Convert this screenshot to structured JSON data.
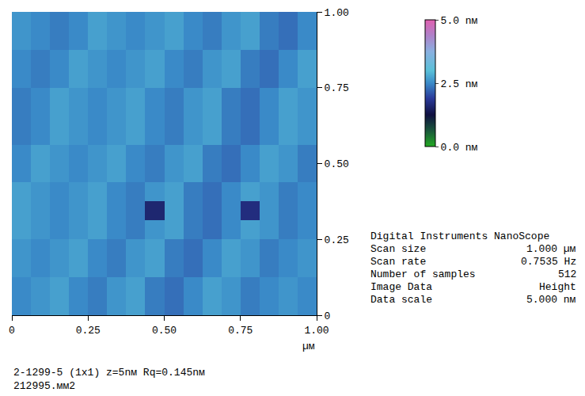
{
  "chart_data": {
    "type": "heatmap",
    "xlim": [
      0,
      1
    ],
    "ylim": [
      0,
      1
    ],
    "xticks": [
      0,
      0.25,
      {
        "value": 0.5,
        "label": "0.50"
      },
      0.75,
      {
        "value": 1,
        "label": "1.00"
      }
    ],
    "yticks": [
      0,
      0.25,
      {
        "value": 0.5,
        "label": "0.50"
      },
      0.75,
      {
        "value": 1,
        "label": "1.00"
      }
    ],
    "x_label": "µм",
    "z": [
      [
        2.5,
        2.6,
        2.7,
        2.5,
        2.4,
        2.6,
        2.7,
        2.4,
        2.3,
        2.5,
        2.7,
        2.6,
        2.4,
        2.5,
        2.6,
        2.5
      ],
      [
        2.5,
        2.6,
        2.7,
        2.5,
        2.4,
        2.6,
        2.7,
        2.4,
        2.3,
        2.5,
        2.7,
        2.6,
        2.4,
        2.5,
        2.6,
        2.5
      ],
      [
        2.6,
        2.5,
        2.6,
        2.7,
        2.5,
        2.4,
        2.6,
        2.7,
        2.4,
        2.3,
        2.5,
        2.7,
        2.6,
        2.4,
        2.5,
        2.6
      ],
      [
        2.6,
        2.5,
        2.6,
        2.7,
        2.5,
        2.4,
        2.6,
        2.7,
        2.4,
        2.3,
        2.5,
        2.7,
        2.6,
        2.4,
        2.5,
        2.6
      ],
      [
        2.7,
        2.6,
        2.5,
        2.6,
        2.7,
        2.5,
        2.4,
        2.6,
        2.7,
        2.4,
        2.3,
        2.5,
        2.7,
        2.6,
        2.4,
        2.5
      ],
      [
        2.7,
        2.6,
        2.5,
        2.6,
        2.7,
        2.5,
        2.4,
        1.6,
        2.7,
        2.4,
        2.3,
        2.5,
        1.7,
        2.6,
        2.4,
        2.5
      ],
      [
        2.7,
        2.6,
        2.5,
        2.6,
        2.7,
        2.5,
        2.4,
        2.6,
        2.7,
        2.4,
        2.3,
        2.5,
        2.7,
        2.6,
        2.4,
        2.5
      ],
      [
        2.5,
        2.7,
        2.6,
        2.5,
        2.6,
        2.7,
        2.5,
        2.4,
        2.6,
        2.7,
        2.4,
        2.3,
        2.5,
        2.7,
        2.6,
        2.4
      ],
      [
        2.5,
        2.7,
        2.6,
        2.5,
        2.6,
        2.7,
        2.5,
        2.4,
        2.6,
        2.7,
        2.4,
        2.3,
        2.5,
        2.7,
        2.6,
        2.4
      ],
      [
        2.4,
        2.5,
        2.7,
        2.6,
        2.5,
        2.6,
        2.7,
        2.5,
        2.4,
        2.6,
        2.7,
        2.4,
        2.3,
        2.5,
        2.7,
        2.6
      ],
      [
        2.4,
        2.5,
        2.7,
        2.6,
        2.5,
        2.6,
        2.7,
        2.5,
        2.4,
        2.6,
        2.7,
        2.4,
        2.3,
        2.5,
        2.7,
        2.6
      ],
      [
        2.4,
        2.5,
        2.7,
        2.6,
        2.5,
        2.6,
        2.7,
        2.5,
        2.4,
        2.6,
        2.7,
        2.4,
        2.3,
        2.5,
        2.7,
        2.6
      ],
      [
        2.5,
        2.4,
        2.5,
        2.7,
        2.6,
        2.5,
        2.6,
        2.7,
        2.5,
        2.4,
        2.6,
        2.7,
        2.4,
        2.3,
        2.5,
        2.7
      ],
      [
        2.5,
        2.4,
        2.5,
        2.7,
        2.6,
        2.5,
        2.6,
        2.7,
        2.5,
        2.4,
        2.6,
        2.7,
        2.4,
        2.3,
        2.5,
        2.7
      ],
      [
        2.6,
        2.5,
        2.4,
        2.5,
        2.7,
        2.6,
        2.5,
        2.6,
        2.7,
        2.5,
        2.4,
        2.6,
        2.7,
        2.4,
        2.3,
        2.5
      ],
      [
        2.6,
        2.5,
        2.4,
        2.5,
        2.7,
        2.6,
        2.5,
        2.6,
        2.7,
        2.5,
        2.4,
        2.6,
        2.7,
        2.4,
        2.3,
        2.5
      ]
    ],
    "colorbar": {
      "range": [
        0,
        5
      ],
      "ticks": [
        {
          "value": 0,
          "label": "0.0 nм"
        },
        {
          "value": 2.5,
          "label": "2.5 nм"
        },
        {
          "value": 5,
          "label": "5.0 nм"
        }
      ]
    },
    "info_panel": {
      "title": "Digital Instruments NanoScope",
      "rows": [
        [
          "Scan size",
          "1.000 µм"
        ],
        [
          "Scan rate",
          "0.7535 Hz"
        ],
        [
          "Number of samples",
          "512"
        ],
        [
          "Image Data",
          "Height"
        ],
        [
          "Data scale",
          "5.000 nм"
        ]
      ]
    },
    "caption": [
      "2-1299-5 (1x1) z=5nм Rq=0.145nм",
      "212995.мм2"
    ]
  }
}
